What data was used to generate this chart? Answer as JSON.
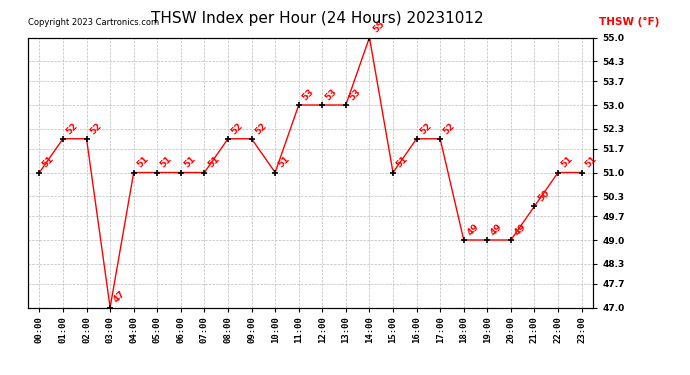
{
  "title": "THSW Index per Hour (24 Hours) 20231012",
  "copyright": "Copyright 2023 Cartronics.com",
  "legend_label": "THSW (°F)",
  "hours": [
    "00:00",
    "01:00",
    "02:00",
    "03:00",
    "04:00",
    "05:00",
    "06:00",
    "07:00",
    "08:00",
    "09:00",
    "10:00",
    "11:00",
    "12:00",
    "13:00",
    "14:00",
    "15:00",
    "16:00",
    "17:00",
    "18:00",
    "19:00",
    "20:00",
    "21:00",
    "22:00",
    "23:00"
  ],
  "values": [
    51,
    52,
    52,
    47,
    51,
    51,
    51,
    51,
    52,
    52,
    51,
    53,
    53,
    53,
    55,
    51,
    52,
    52,
    49,
    49,
    49,
    50,
    51,
    51
  ],
  "ylim_min": 47.0,
  "ylim_max": 55.0,
  "yticks": [
    47.0,
    47.7,
    48.3,
    49.0,
    49.7,
    50.3,
    51.0,
    51.7,
    52.3,
    53.0,
    53.7,
    54.3,
    55.0
  ],
  "line_color": "#ff0000",
  "marker_color": "#000000",
  "title_fontsize": 11,
  "annot_fontsize": 6.5,
  "tick_fontsize": 6.5,
  "copyright_fontsize": 6,
  "legend_fontsize": 7.5,
  "bg_color": "#ffffff",
  "grid_color": "#bbbbbb"
}
